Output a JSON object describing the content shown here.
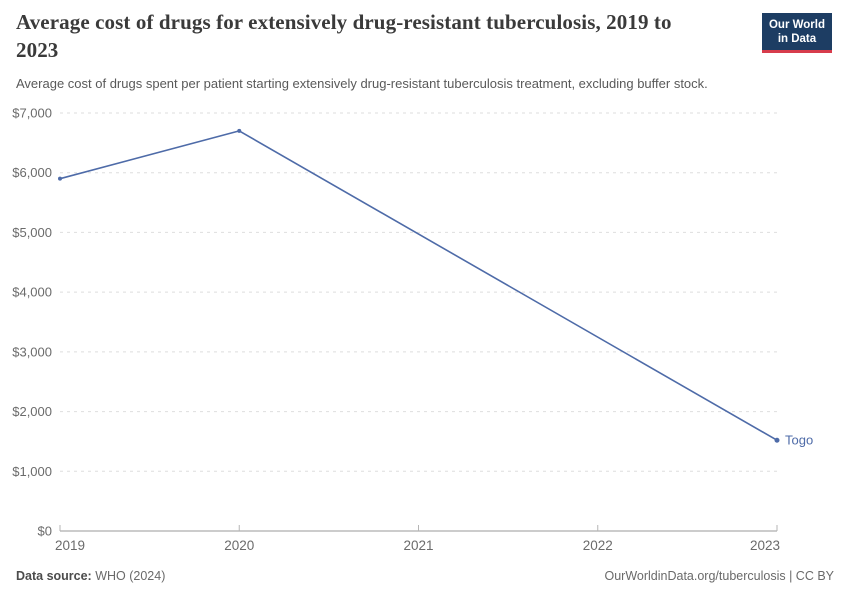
{
  "header": {
    "title": "Average cost of drugs for extensively drug-resistant tuberculosis, 2019 to 2023",
    "subtitle": "Average cost of drugs spent per patient starting extensively drug-resistant tuberculosis treatment, excluding buffer stock.",
    "logo": {
      "line1": "Our World",
      "line2": "in Data"
    }
  },
  "chart_data": {
    "type": "line",
    "title": "Average cost of drugs for extensively drug-resistant tuberculosis, 2019 to 2023",
    "x": [
      2019,
      2020,
      2023
    ],
    "series": [
      {
        "name": "Togo",
        "values": [
          5900,
          6700,
          1520
        ],
        "color": "#4e6ba8"
      }
    ],
    "xlim": [
      2019,
      2023
    ],
    "ylim": [
      0,
      7000
    ],
    "xtick_values": [
      2019,
      2020,
      2021,
      2022,
      2023
    ],
    "xtick_labels": [
      "2019",
      "2020",
      "2021",
      "2022",
      "2023"
    ],
    "ytick_values": [
      0,
      1000,
      2000,
      3000,
      4000,
      5000,
      6000,
      7000
    ],
    "ytick_labels": [
      "$0",
      "$1,000",
      "$2,000",
      "$3,000",
      "$4,000",
      "$5,000",
      "$6,000",
      "$7,000"
    ],
    "grid": "horizontal-dashed",
    "legend": "end-of-line-label"
  },
  "footer": {
    "source_label": "Data source:",
    "source_value": "WHO (2024)",
    "rights": "OurWorldinData.org/tuberculosis | CC BY"
  },
  "colors": {
    "line": "#4e6ba8",
    "grid": "#dedede",
    "axis": "#999999",
    "tick": "#b5b5b5",
    "axis_text": "#6b6b6b",
    "logo_bg": "#1d3d63",
    "logo_accent": "#d73c4c"
  }
}
